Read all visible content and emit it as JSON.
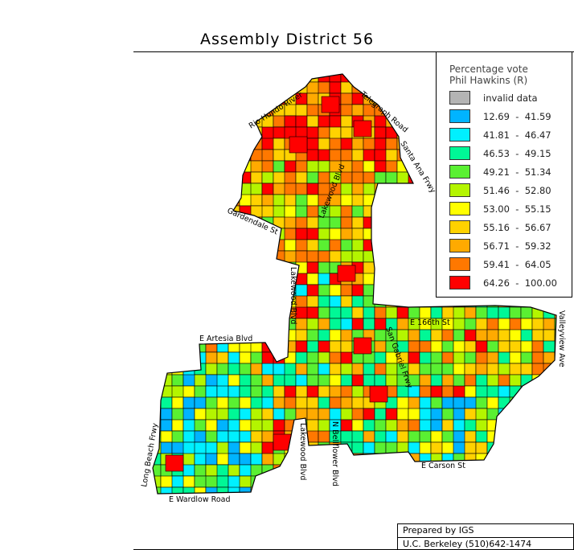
{
  "title": "Assembly District 56",
  "legend": {
    "title_line1": "Percentage vote",
    "title_line2": "Phil Hawkins (R)",
    "items": [
      {
        "label": "invalid data",
        "color": "#b4b4b4"
      },
      {
        "label": "12.69  -  41.59",
        "color": "#00b4ff"
      },
      {
        "label": "41.81  -  46.47",
        "color": "#00f0ff"
      },
      {
        "label": "46.53  -  49.15",
        "color": "#00f896"
      },
      {
        "label": "49.21  -  51.34",
        "color": "#5af032"
      },
      {
        "label": "51.46  -  52.80",
        "color": "#b4f500"
      },
      {
        "label": "53.00  -  55.15",
        "color": "#ffff00"
      },
      {
        "label": "55.16  -  56.67",
        "color": "#ffd200"
      },
      {
        "label": "56.71  -  59.32",
        "color": "#ffaa00"
      },
      {
        "label": "59.41  -  64.05",
        "color": "#ff7800"
      },
      {
        "label": "64.26  -  100.00",
        "color": "#ff0000"
      }
    ]
  },
  "streets": {
    "rio_hondo": "Rio Hondo River",
    "telegraph": "Telegraph Road",
    "santa_ana": "Santa Ana Frwy",
    "lakewood_n": "Lakewood Blvd",
    "gardendale": "Gardendale St",
    "lakewood_mid": "Lakewood Blvd",
    "e_artesia": "E Artesia Blvd",
    "e_166th": "E 166th St",
    "valleyview": "Valleyview Ave",
    "san_gabriel": "San Gabriel Frwy",
    "long_beach": "Long Beach Frwy",
    "lakewood_s": "Lakewood Blvd",
    "bellflower": "N Bellflower Blvd",
    "e_carson": "E Carson St",
    "e_wardlow": "E Wardlow Road"
  },
  "credit": {
    "line1": "Prepared by IGS",
    "line2": "U.C. Berkeley (510)642-1474"
  }
}
